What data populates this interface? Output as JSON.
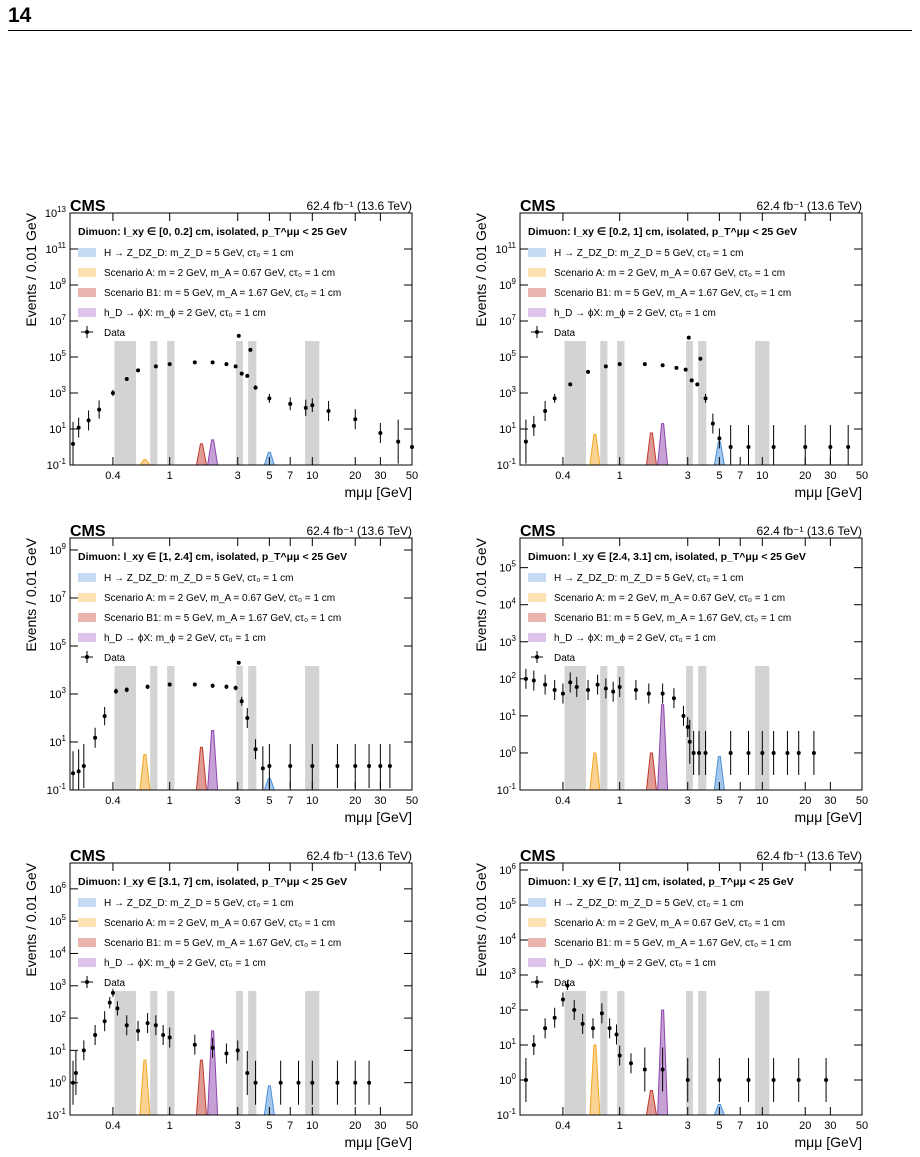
{
  "page": {
    "number": "14"
  },
  "common": {
    "cms_label": "CMS",
    "lumi_label": "62.4 fb⁻¹ (13.6 TeV)",
    "ylabel": "Events / 0.01 GeV",
    "xlabel": "mμμ [GeV]",
    "x_ticks": [
      "0.4",
      "1",
      "3",
      "5",
      "7",
      "10",
      "20",
      "30",
      "50"
    ],
    "legend": [
      {
        "label": "H → Z_DZ_D: m_Z_D = 5 GeV, cτ₀ = 1 cm",
        "color": "#c5dbf2",
        "kind": "box"
      },
      {
        "label": "Scenario A: m = 2 GeV, m_A = 0.67 GeV, cτ₀ = 1 cm",
        "color": "#fbe2b0",
        "kind": "box"
      },
      {
        "label": "Scenario B1: m = 5 GeV, m_A = 1.67 GeV, cτ₀ = 1 cm",
        "color": "#e8b4ad",
        "kind": "box"
      },
      {
        "label": "h_D → ϕX: m_ϕ = 2 GeV, cτ₀ = 1 cm",
        "color": "#dcc4eb",
        "kind": "box"
      },
      {
        "label": "Data",
        "color": "#000000",
        "kind": "marker"
      }
    ],
    "signal_colors": {
      "zd": "#4a90d9",
      "scenA": "#f5a623",
      "scenB1": "#c0392b",
      "hphi": "#8e44ad"
    },
    "shaded_regions": [
      [
        0.41,
        0.58
      ],
      [
        0.73,
        0.82
      ],
      [
        0.96,
        1.08
      ],
      [
        2.92,
        3.26
      ],
      [
        3.55,
        4.05
      ],
      [
        8.9,
        11.2
      ]
    ]
  },
  "chart_data": [
    {
      "panel": "top-left",
      "type": "scatter",
      "title": "Dimuon: l_xy ∈ [0, 0.2] cm, isolated, p_T^μμ < 25 GeV",
      "xlim": [
        0.2,
        50
      ],
      "ylim_exp": [
        -1,
        13
      ],
      "y_tick_exps": [
        -1,
        1,
        3,
        5,
        7,
        9,
        11,
        13
      ],
      "log_x": true,
      "log_y": true,
      "data": [
        [
          0.21,
          1.5
        ],
        [
          0.23,
          12
        ],
        [
          0.27,
          30
        ],
        [
          0.32,
          120
        ],
        [
          0.4,
          1000
        ],
        [
          0.5,
          6000
        ],
        [
          0.6,
          18000
        ],
        [
          0.8,
          30000
        ],
        [
          1.0,
          40000
        ],
        [
          1.5,
          50000
        ],
        [
          2.0,
          50000
        ],
        [
          2.5,
          40000
        ],
        [
          2.9,
          30000
        ],
        [
          3.05,
          1500000
        ],
        [
          3.2,
          12000
        ],
        [
          3.5,
          9000
        ],
        [
          3.68,
          250000
        ],
        [
          4.0,
          2000
        ],
        [
          5.0,
          500
        ],
        [
          7.0,
          250
        ],
        [
          9.0,
          150
        ],
        [
          10.0,
          210
        ],
        [
          13.0,
          100
        ],
        [
          20.0,
          35
        ],
        [
          30.0,
          6
        ],
        [
          40.0,
          2
        ],
        [
          50.0,
          1
        ]
      ],
      "signals": {
        "zd": [
          [
            5.0,
            0.5
          ]
        ],
        "scenA": [
          [
            0.67,
            0.2
          ]
        ],
        "scenB1": [
          [
            1.67,
            1.5
          ]
        ],
        "hphi": [
          [
            2.0,
            2.5
          ]
        ]
      }
    },
    {
      "panel": "top-right",
      "type": "scatter",
      "title": "Dimuon: l_xy ∈ [0.2, 1] cm, isolated, p_T^μμ < 25 GeV",
      "xlim": [
        0.2,
        50
      ],
      "ylim_exp": [
        -1,
        13
      ],
      "y_tick_exps": [
        -1,
        1,
        3,
        5,
        7,
        9,
        11
      ],
      "log_x": true,
      "log_y": true,
      "data": [
        [
          0.22,
          2
        ],
        [
          0.25,
          15
        ],
        [
          0.3,
          100
        ],
        [
          0.35,
          500
        ],
        [
          0.45,
          3000
        ],
        [
          0.6,
          15000
        ],
        [
          0.8,
          30000
        ],
        [
          1.0,
          40000
        ],
        [
          1.5,
          40000
        ],
        [
          2.0,
          35000
        ],
        [
          2.5,
          25000
        ],
        [
          2.9,
          20000
        ],
        [
          3.05,
          1200000
        ],
        [
          3.2,
          5000
        ],
        [
          3.5,
          3000
        ],
        [
          3.68,
          80000
        ],
        [
          4.0,
          500
        ],
        [
          4.5,
          20
        ],
        [
          5.0,
          3
        ],
        [
          6.0,
          1
        ],
        [
          8.0,
          1
        ],
        [
          12.0,
          1
        ],
        [
          20.0,
          1
        ],
        [
          30.0,
          1
        ],
        [
          40.0,
          1
        ]
      ],
      "signals": {
        "zd": [
          [
            5.0,
            2
          ]
        ],
        "scenA": [
          [
            0.67,
            5
          ]
        ],
        "scenB1": [
          [
            1.67,
            6
          ]
        ],
        "hphi": [
          [
            2.0,
            20
          ]
        ]
      }
    },
    {
      "panel": "middle-left",
      "type": "scatter",
      "title": "Dimuon: l_xy ∈ [1, 2.4] cm, isolated, p_T^μμ < 25 GeV",
      "xlim": [
        0.2,
        50
      ],
      "ylim_exp": [
        -1,
        9.5
      ],
      "y_tick_exps": [
        -1,
        1,
        3,
        5,
        7,
        9
      ],
      "log_x": true,
      "log_y": true,
      "data": [
        [
          0.21,
          0.5
        ],
        [
          0.23,
          0.6
        ],
        [
          0.25,
          1
        ],
        [
          0.3,
          15
        ],
        [
          0.35,
          120
        ],
        [
          0.42,
          1300
        ],
        [
          0.5,
          1500
        ],
        [
          0.7,
          2000
        ],
        [
          1.0,
          2500
        ],
        [
          1.5,
          2500
        ],
        [
          2.0,
          2200
        ],
        [
          2.5,
          2000
        ],
        [
          2.9,
          1800
        ],
        [
          3.05,
          20000
        ],
        [
          3.2,
          500
        ],
        [
          3.5,
          100
        ],
        [
          4.0,
          5
        ],
        [
          4.5,
          0.8
        ],
        [
          5.0,
          1
        ],
        [
          7.0,
          1
        ],
        [
          10.0,
          1
        ],
        [
          15.0,
          1
        ],
        [
          20.0,
          1
        ],
        [
          25.0,
          1
        ],
        [
          30.0,
          1
        ],
        [
          35.0,
          1
        ]
      ],
      "signals": {
        "zd": [
          [
            5.0,
            0.3
          ]
        ],
        "scenA": [
          [
            0.67,
            3
          ]
        ],
        "scenB1": [
          [
            1.67,
            6
          ]
        ],
        "hphi": [
          [
            2.0,
            30
          ]
        ]
      }
    },
    {
      "panel": "middle-right",
      "type": "scatter",
      "title": "Dimuon: l_xy ∈ [2.4, 3.1] cm, isolated, p_T^μμ < 25 GeV",
      "xlim": [
        0.2,
        50
      ],
      "ylim_exp": [
        -1,
        5.8
      ],
      "y_tick_exps": [
        -1,
        0,
        1,
        2,
        3,
        4,
        5
      ],
      "log_x": true,
      "log_y": true,
      "data": [
        [
          0.22,
          100
        ],
        [
          0.25,
          90
        ],
        [
          0.3,
          70
        ],
        [
          0.35,
          50
        ],
        [
          0.4,
          40
        ],
        [
          0.45,
          80
        ],
        [
          0.5,
          60
        ],
        [
          0.6,
          50
        ],
        [
          0.7,
          70
        ],
        [
          0.8,
          55
        ],
        [
          0.9,
          45
        ],
        [
          1.0,
          60
        ],
        [
          1.3,
          50
        ],
        [
          1.6,
          40
        ],
        [
          2.0,
          40
        ],
        [
          2.4,
          30
        ],
        [
          2.8,
          10
        ],
        [
          3.0,
          5
        ],
        [
          3.1,
          2
        ],
        [
          3.3,
          1
        ],
        [
          3.6,
          1
        ],
        [
          4.0,
          1
        ],
        [
          6.0,
          1
        ],
        [
          8.0,
          1
        ],
        [
          10.0,
          1
        ],
        [
          12.0,
          1
        ],
        [
          15.0,
          1
        ],
        [
          18.0,
          1
        ],
        [
          23.0,
          1
        ]
      ],
      "signals": {
        "zd": [
          [
            5.0,
            0.8
          ]
        ],
        "scenA": [
          [
            0.67,
            1
          ]
        ],
        "scenB1": [
          [
            1.67,
            1
          ]
        ],
        "hphi": [
          [
            2.0,
            20
          ]
        ]
      }
    },
    {
      "panel": "bottom-left",
      "type": "scatter",
      "title": "Dimuon: l_xy ∈ [3.1, 7] cm, isolated, p_T^μμ < 25 GeV",
      "xlim": [
        0.2,
        50
      ],
      "ylim_exp": [
        -1,
        6.8
      ],
      "y_tick_exps": [
        -1,
        0,
        1,
        2,
        3,
        4,
        5,
        6
      ],
      "log_x": true,
      "log_y": true,
      "data": [
        [
          0.21,
          1
        ],
        [
          0.22,
          2
        ],
        [
          0.25,
          10
        ],
        [
          0.3,
          30
        ],
        [
          0.35,
          80
        ],
        [
          0.38,
          300
        ],
        [
          0.4,
          600
        ],
        [
          0.43,
          200
        ],
        [
          0.5,
          60
        ],
        [
          0.6,
          40
        ],
        [
          0.7,
          70
        ],
        [
          0.8,
          60
        ],
        [
          0.9,
          30
        ],
        [
          1.0,
          25
        ],
        [
          1.5,
          15
        ],
        [
          2.0,
          12
        ],
        [
          2.5,
          8
        ],
        [
          3.0,
          10
        ],
        [
          3.5,
          2
        ],
        [
          4.0,
          1
        ],
        [
          6.0,
          1
        ],
        [
          8.0,
          1
        ],
        [
          10.0,
          1
        ],
        [
          15.0,
          1
        ],
        [
          20.0,
          1
        ],
        [
          25.0,
          1
        ]
      ],
      "signals": {
        "zd": [
          [
            5.0,
            0.8
          ]
        ],
        "scenA": [
          [
            0.67,
            5
          ]
        ],
        "scenB1": [
          [
            1.67,
            5
          ]
        ],
        "hphi": [
          [
            2.0,
            40
          ]
        ]
      }
    },
    {
      "panel": "bottom-right",
      "type": "scatter",
      "title": "Dimuon: l_xy ∈ [7, 11] cm, isolated, p_T^μμ < 25 GeV",
      "xlim": [
        0.2,
        50
      ],
      "ylim_exp": [
        -1,
        6.2
      ],
      "y_tick_exps": [
        -1,
        0,
        1,
        2,
        3,
        4,
        5,
        6
      ],
      "log_x": true,
      "log_y": true,
      "data": [
        [
          0.22,
          1
        ],
        [
          0.25,
          10
        ],
        [
          0.3,
          30
        ],
        [
          0.35,
          60
        ],
        [
          0.4,
          200
        ],
        [
          0.43,
          500
        ],
        [
          0.48,
          100
        ],
        [
          0.55,
          40
        ],
        [
          0.65,
          30
        ],
        [
          0.75,
          80
        ],
        [
          0.85,
          30
        ],
        [
          0.95,
          20
        ],
        [
          1.0,
          5
        ],
        [
          1.2,
          3
        ],
        [
          1.5,
          2
        ],
        [
          2.0,
          2
        ],
        [
          3.0,
          1
        ],
        [
          5.0,
          1
        ],
        [
          8.0,
          1
        ],
        [
          12.0,
          1
        ],
        [
          18.0,
          1
        ],
        [
          28.0,
          1
        ]
      ],
      "signals": {
        "zd": [
          [
            5.0,
            0.2
          ]
        ],
        "scenA": [
          [
            0.67,
            10
          ]
        ],
        "scenB1": [
          [
            1.67,
            0.5
          ]
        ],
        "hphi": [
          [
            2.0,
            100
          ]
        ]
      }
    }
  ]
}
